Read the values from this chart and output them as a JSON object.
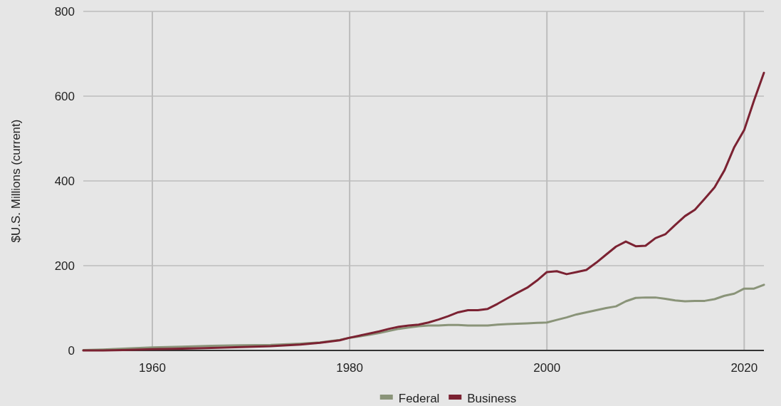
{
  "chart_data": {
    "type": "line",
    "ylabel": "$U.S. Millions (current)",
    "x": [
      1953,
      1955,
      1957,
      1960,
      1963,
      1966,
      1969,
      1972,
      1975,
      1977,
      1979,
      1980,
      1981,
      1982,
      1983,
      1984,
      1985,
      1986,
      1987,
      1988,
      1989,
      1990,
      1991,
      1992,
      1993,
      1994,
      1995,
      1996,
      1997,
      1998,
      1999,
      2000,
      2001,
      2002,
      2003,
      2004,
      2005,
      2006,
      2007,
      2008,
      2009,
      2010,
      2011,
      2012,
      2013,
      2014,
      2015,
      2016,
      2017,
      2018,
      2019,
      2020,
      2021,
      2022
    ],
    "series": [
      {
        "name": "Federal",
        "color": "#8a9479",
        "values": [
          1,
          2,
          4,
          7,
          9,
          11,
          12,
          13,
          16,
          19,
          25,
          30,
          33,
          37,
          41,
          46,
          51,
          54,
          57,
          59,
          59,
          60,
          60,
          59,
          59,
          59,
          61,
          62,
          63,
          64,
          65,
          66,
          72,
          78,
          85,
          90,
          95,
          100,
          104,
          116,
          124,
          125,
          125,
          122,
          118,
          116,
          117,
          117,
          121,
          129,
          134,
          146,
          146,
          155
        ]
      },
      {
        "name": "Business",
        "color": "#7b2232",
        "values": [
          0,
          0,
          1,
          3,
          4,
          6,
          8,
          10,
          14,
          18,
          24,
          30,
          35,
          40,
          45,
          51,
          56,
          59,
          61,
          66,
          73,
          81,
          90,
          95,
          95,
          98,
          110,
          123,
          136,
          148,
          165,
          185,
          187,
          180,
          185,
          190,
          207,
          226,
          245,
          257,
          246,
          247,
          265,
          274,
          296,
          317,
          332,
          358,
          385,
          425,
          480,
          520,
          590,
          655
        ]
      }
    ],
    "xlim": [
      1953,
      2022
    ],
    "xticks": [
      1960,
      1980,
      2000,
      2020
    ],
    "ylim": [
      0,
      800
    ],
    "yticks": [
      0,
      200,
      400,
      600,
      800
    ],
    "grid": true,
    "legend": "bottom",
    "line_style": "solid",
    "marker": "none"
  }
}
